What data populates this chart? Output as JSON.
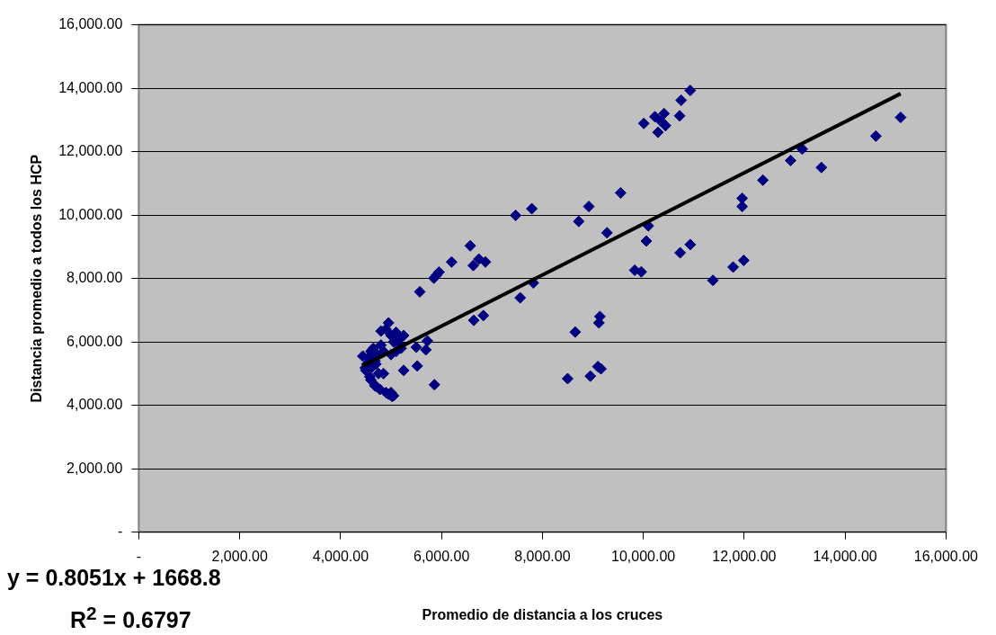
{
  "chart_data": {
    "type": "scatter",
    "xlabel": "Promedio de distancia a los cruces",
    "ylabel": "Distancia promedio a todos los HCP",
    "xlim": [
      0,
      16000
    ],
    "ylim": [
      0,
      16000
    ],
    "xticks": [
      {
        "value": 0,
        "label": "-"
      },
      {
        "value": 2000,
        "label": "2,000.00"
      },
      {
        "value": 4000,
        "label": "4,000.00"
      },
      {
        "value": 6000,
        "label": "6,000.00"
      },
      {
        "value": 8000,
        "label": "8,000.00"
      },
      {
        "value": 10000,
        "label": "10,000.00"
      },
      {
        "value": 12000,
        "label": "12,000.00"
      },
      {
        "value": 14000,
        "label": "14,000.00"
      },
      {
        "value": 16000,
        "label": "16,000.00"
      }
    ],
    "yticks": [
      {
        "value": 0,
        "label": "-"
      },
      {
        "value": 2000,
        "label": "2,000.00"
      },
      {
        "value": 4000,
        "label": "4,000.00"
      },
      {
        "value": 6000,
        "label": "6,000.00"
      },
      {
        "value": 8000,
        "label": "8,000.00"
      },
      {
        "value": 10000,
        "label": "10,000.00"
      },
      {
        "value": 12000,
        "label": "12,000.00"
      },
      {
        "value": 14000,
        "label": "14,000.00"
      },
      {
        "value": 16000,
        "label": "16,000.00"
      }
    ],
    "grid": "y",
    "legend": false,
    "marker": "diamond",
    "series": [
      {
        "type": "scatter",
        "color": "#000080",
        "x": [
          4500,
          4520,
          4550,
          4580,
          4600,
          4620,
          4650,
          4680,
          4700,
          4720,
          4750,
          4780,
          4800,
          4850,
          4900,
          4950,
          4900,
          4950,
          5000,
          5050,
          5000,
          5050,
          5100,
          5150,
          5200,
          5250,
          4600,
          4700,
          4850,
          5000,
          5100,
          5200,
          4440,
          4490,
          4680,
          4800,
          5020,
          5250,
          5520,
          5860,
          5690,
          5500,
          5720,
          5570,
          5850,
          5900,
          5950,
          6200,
          6570,
          6630,
          6740,
          6870,
          6640,
          6830,
          7560,
          7820,
          7470,
          7790,
          8720,
          8920,
          9550,
          9280,
          10100,
          10060,
          9830,
          9960,
          10730,
          10930,
          11380,
          11780,
          11990,
          11960,
          11960,
          8500,
          8950,
          9100,
          9160,
          8650,
          9120,
          9140,
          10930,
          10750,
          10720,
          10410,
          10230,
          10010,
          10290,
          10440,
          10350,
          15100,
          14610,
          13150,
          12920,
          13530,
          12370
        ],
        "values": [
          5100,
          5300,
          5500,
          4900,
          5700,
          5200,
          5800,
          5400,
          4600,
          5600,
          5000,
          4500,
          5900,
          5700,
          6400,
          6600,
          4400,
          4350,
          4400,
          4300,
          6200,
          6000,
          6300,
          6100,
          5900,
          6200,
          4800,
          5300,
          5000,
          5600,
          5700,
          5800,
          5550,
          5180,
          4620,
          6340,
          4280,
          5100,
          5240,
          4650,
          5750,
          5830,
          6030,
          7580,
          8010,
          8100,
          8200,
          8520,
          9030,
          8410,
          8610,
          8520,
          6680,
          6830,
          7390,
          7860,
          9990,
          10200,
          9800,
          10270,
          10700,
          9440,
          9660,
          9180,
          8260,
          8210,
          8810,
          9070,
          7940,
          8360,
          8570,
          10530,
          10270,
          4840,
          4920,
          5220,
          5150,
          6310,
          6600,
          6800,
          13930,
          13620,
          13130,
          13200,
          13100,
          12890,
          12610,
          12820,
          12960,
          13080,
          12490,
          12080,
          11720,
          11500,
          11100
        ]
      },
      {
        "type": "line",
        "color": "#000000",
        "x": [
          4440,
          15100
        ],
        "values": [
          5240,
          13830
        ],
        "marker": "none"
      }
    ],
    "annotations": [
      "y = 0.8051x + 1668.8",
      "R$^{2}$ = 0.6797"
    ]
  }
}
